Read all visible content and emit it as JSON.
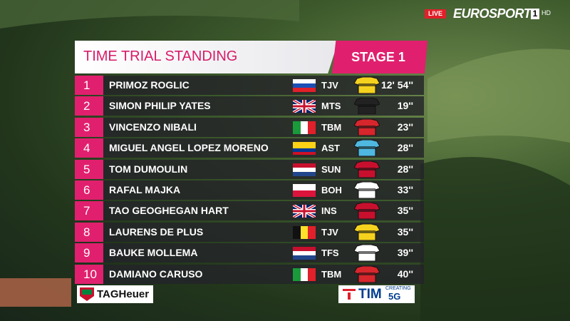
{
  "broadcaster": {
    "live": "LIVE",
    "channel": "EUROSPORT",
    "number": "1",
    "quality": "HD"
  },
  "header": {
    "title": "TIME TRIAL STANDING",
    "stage": "STAGE 1"
  },
  "table": {
    "rows": [
      [
        "1",
        "PRIMOZ ROGLIC",
        "TJV",
        "12' 54''"
      ],
      [
        "2",
        "SIMON PHILIP YATES",
        "MTS",
        "19''"
      ],
      [
        "3",
        "VINCENZO NIBALI",
        "TBM",
        "23''"
      ],
      [
        "4",
        "MIGUEL ANGEL LOPEZ MORENO",
        "AST",
        "28''"
      ],
      [
        "5",
        "TOM DUMOULIN",
        "SUN",
        "28''"
      ],
      [
        "6",
        "RAFAL MAJKA",
        "BOH",
        "33''"
      ],
      [
        "7",
        "TAO GEOGHEGAN HART",
        "INS",
        "35''"
      ],
      [
        "8",
        "LAURENS DE PLUS",
        "TJV",
        "35''"
      ],
      [
        "9",
        "BAUKE MOLLEMA",
        "TFS",
        "39''"
      ],
      [
        "10",
        "DAMIANO CARUSO",
        "TBM",
        "40''"
      ]
    ]
  },
  "sponsors": {
    "left": "TAGHeuer",
    "right": "TIM",
    "right_tagline": "CREATING",
    "right_badge": "5G"
  }
}
